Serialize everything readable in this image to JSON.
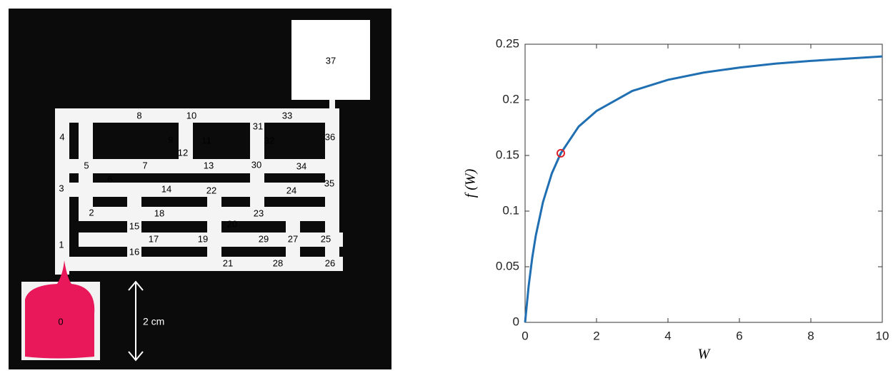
{
  "maze": {
    "labels": [
      "0",
      "1",
      "2",
      "3",
      "4",
      "5",
      "6",
      "7",
      "8",
      "9",
      "10",
      "11",
      "12",
      "13",
      "14",
      "15",
      "16",
      "17",
      "18",
      "19",
      "20",
      "21",
      "22",
      "23",
      "24",
      "25",
      "26",
      "27",
      "28",
      "29",
      "30",
      "31",
      "32",
      "33",
      "34",
      "35",
      "36",
      "37"
    ],
    "scale_label": "2 cm"
  },
  "chart_data": {
    "type": "line",
    "xlabel": "W",
    "ylabel": "f (W)",
    "xlim": [
      0,
      10
    ],
    "ylim": [
      0,
      0.25
    ],
    "xticks": [
      0,
      2,
      4,
      6,
      8,
      10
    ],
    "yticks": [
      0,
      0.05,
      0.1,
      0.15,
      0.2,
      0.25
    ],
    "series": [
      {
        "color": "#1f6fb2",
        "x": [
          0,
          0.1,
          0.2,
          0.3,
          0.5,
          0.75,
          1,
          1.5,
          2,
          3,
          4,
          5,
          6,
          7,
          8,
          9,
          10
        ],
        "values": [
          0,
          0.0327,
          0.058,
          0.078,
          0.108,
          0.134,
          0.152,
          0.176,
          0.19,
          0.208,
          0.218,
          0.2245,
          0.229,
          0.2325,
          0.235,
          0.237,
          0.239
        ]
      },
      {
        "color": "#e0202a",
        "x": [
          1
        ],
        "values": [
          0.152
        ]
      }
    ]
  }
}
